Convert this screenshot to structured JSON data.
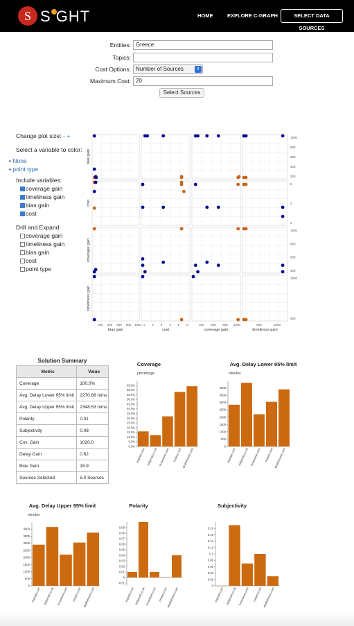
{
  "header": {
    "logo_letter": "S",
    "logo_text": "S GHT",
    "nav": [
      "HOME",
      "EXPLORE C-GRAPH"
    ],
    "nav_button": "SELECT DATA SOURCES"
  },
  "form": {
    "entities_label": "Entities:",
    "entities_value": "Greece",
    "topics_label": "Topics:",
    "topics_value": "",
    "cost_label": "Cost Options:",
    "cost_value": "Number of Sources",
    "maxcost_label": "Maximum Cost:",
    "maxcost_value": "20",
    "button": "Select Sources"
  },
  "sidebar": {
    "plot_size_label": "Change plot size:",
    "plot_minus": "-",
    "plot_plus": "+",
    "color_label": "Select a variable to color:",
    "color_options": [
      "None",
      "point type"
    ],
    "include_label": "Include variables:",
    "include_vars": [
      "coverage gain",
      "timeliness gain",
      "bias gain",
      "cost"
    ],
    "drill_label": "Drill and Expand:",
    "drill_vars": [
      "coverage gain",
      "timeliness gain",
      "bias gain",
      "cost",
      "point type"
    ]
  },
  "scatter": {
    "row_labels": [
      "bias gain",
      "cost",
      "coverage gain",
      "timeliness gain"
    ],
    "col_labels": [
      "bias gain",
      "cost",
      "coverage gain",
      "timeliness gain"
    ],
    "bias_ticks": [
      "200",
      "400",
      "600",
      "800",
      "1000"
    ],
    "cost_ticks": [
      "2",
      "4",
      "6"
    ],
    "cov_ticks": [
      "400",
      "600",
      "800",
      "1000"
    ],
    "time_ticks": [
      "500",
      "1000"
    ],
    "right_ticks_r0": [
      "1000",
      "800",
      "600",
      "400",
      "200"
    ],
    "right_ticks_r1": [
      "6",
      "4",
      "2"
    ],
    "right_ticks_r2": [
      "1000",
      "800",
      "600",
      "400"
    ],
    "right_ticks_r3": [
      "1000",
      "500"
    ],
    "bottom_ticks_c1": [
      "1",
      "2",
      "3",
      "4",
      "5",
      "6"
    ],
    "colors": {
      "blue": "#0a0a8c",
      "orange": "#c9651e"
    }
  },
  "summary": {
    "title": "Solution Summary",
    "headers": [
      "Metric",
      "Value"
    ],
    "rows": [
      [
        "Coverage",
        "100.0%"
      ],
      [
        "Avg. Delay Lower 95% limit",
        "2270.88 mins"
      ],
      [
        "Avg. Delay Upper 95% limit",
        "2348.53 mins"
      ],
      [
        "Polarity",
        "0.01"
      ],
      [
        "Subjectivity",
        "0.08"
      ],
      [
        "Cov. Gain",
        "1020.0"
      ],
      [
        "Delay Gain",
        "0.62"
      ],
      [
        "Bias Gain",
        "18.9"
      ],
      [
        "Sources Selected",
        "5.0 Sources"
      ]
    ]
  },
  "chart_data": [
    {
      "type": "bar",
      "title": "Coverage",
      "ylabel": "percentage",
      "categories": [
        "inquisitr.com",
        "dailymail.co.uk",
        "hvmedwer.com",
        "reuters.com",
        "ekathimerini.com"
      ],
      "values": [
        16,
        12,
        32,
        58,
        64
      ],
      "ylim": [
        0,
        70
      ],
      "ticks": [
        "0.0%",
        "5.0%",
        "10.0%",
        "15.0%",
        "20.0%",
        "25.0%",
        "30.0%",
        "35.0%",
        "40.0%",
        "45.0%",
        "50.0%",
        "55.0%",
        "60.0%",
        "65.0%"
      ],
      "tick_values": [
        0,
        5,
        10,
        15,
        20,
        25,
        30,
        35,
        40,
        45,
        50,
        55,
        60,
        65
      ]
    },
    {
      "type": "bar",
      "title": "Avg. Delay Lower 95% limit",
      "ylabel": "minutes",
      "categories": [
        "inquisitr.com",
        "dailymail.co.uk",
        "hvmedwer.com",
        "reuters.com",
        "ekathimerini.com"
      ],
      "values": [
        2850,
        4350,
        2200,
        3050,
        3900
      ],
      "ylim": [
        0,
        4500
      ],
      "ticks": [
        "0",
        "500",
        "1000",
        "1500",
        "2000",
        "2500",
        "3000",
        "3500",
        "4000"
      ],
      "tick_values": [
        0,
        500,
        1000,
        1500,
        2000,
        2500,
        3000,
        3500,
        4000
      ]
    },
    {
      "type": "bar",
      "title": "Avg. Delay Upper 95% limit",
      "ylabel": "minutes",
      "categories": [
        "inquisitr.com",
        "dailymail.co.uk",
        "hvmedwer.com",
        "reuters.com",
        "ekathimerini.com"
      ],
      "values": [
        2900,
        4150,
        2200,
        3050,
        3750
      ],
      "ylim": [
        0,
        4500
      ],
      "ticks": [
        "0",
        "500",
        "1000",
        "1500",
        "2000",
        "2500",
        "3000",
        "3500",
        "4000"
      ],
      "tick_values": [
        0,
        500,
        1000,
        1500,
        2000,
        2500,
        3000,
        3500,
        4000
      ]
    },
    {
      "type": "bar",
      "title": "Polarity",
      "ylabel": "",
      "categories": [
        "inquisitr.com",
        "dailymail.co.uk",
        "hvmedwer.com",
        "reuters.com",
        "ekathimerini.com"
      ],
      "values": [
        0.01,
        0.1,
        0.01,
        0.0,
        0.04
      ],
      "ylim": [
        -0.015,
        0.1
      ],
      "baseline": 0,
      "ticks": [
        "-0.01",
        "0",
        "0.01",
        "0.02",
        "0.03",
        "0.04",
        "0.05",
        "0.06",
        "0.07",
        "0.08",
        "0.09"
      ],
      "tick_values": [
        -0.01,
        0,
        0.01,
        0.02,
        0.03,
        0.04,
        0.05,
        0.06,
        0.07,
        0.08,
        0.09
      ]
    },
    {
      "type": "bar",
      "title": "Subjectivity",
      "ylabel": "",
      "categories": [
        "inquisitr.com",
        "dailymail.co.uk",
        "hvmedwer.com",
        "reuters.com",
        "ekathimerini.com"
      ],
      "values": [
        0,
        0.19,
        0.07,
        0.1,
        0.03
      ],
      "ylim": [
        0,
        0.2
      ],
      "ticks": [
        "0",
        "0.02",
        "0.04",
        "0.06",
        "0.08",
        "0.1",
        "0.12",
        "0.14",
        "0.16",
        "0.18"
      ],
      "tick_values": [
        0,
        0.02,
        0.04,
        0.06,
        0.08,
        0.1,
        0.12,
        0.14,
        0.16,
        0.18
      ]
    }
  ]
}
